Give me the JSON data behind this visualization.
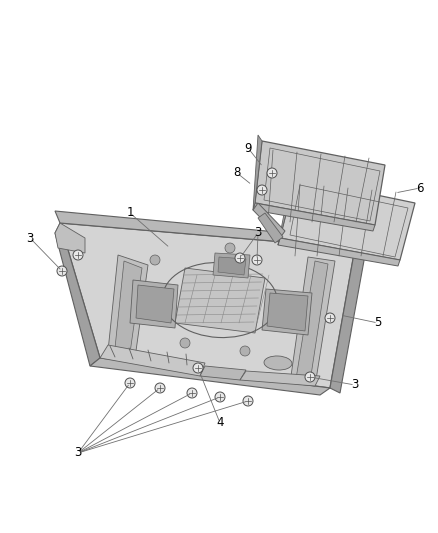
{
  "bg_color": "#ffffff",
  "lc": "#606060",
  "lc_light": "#909090",
  "fig_width": 4.38,
  "fig_height": 5.33,
  "main_face": "#d4d4d4",
  "main_dark": "#b8b8b8",
  "main_darker": "#a0a0a0",
  "side_panel_face": "#cccccc",
  "side_panel_dark": "#aaaaaa",
  "screw_face": "#e8e8e8",
  "screw_edge": "#505050"
}
